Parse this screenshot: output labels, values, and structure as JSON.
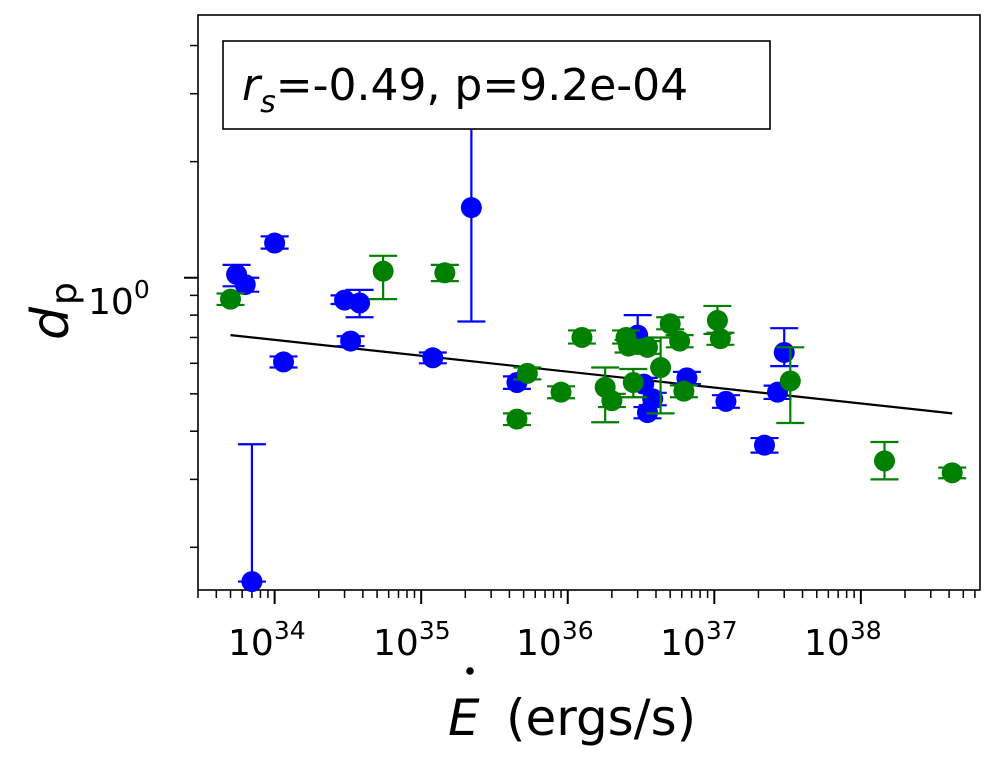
{
  "chart_data": {
    "type": "scatter",
    "title": "",
    "xlabel": "Ė (ergs/s)",
    "xlabel_symbol": "E",
    "xlabel_unit": "(ergs/s)",
    "ylabel_symbol": "d",
    "ylabel_subscript": "p",
    "xscale": "log",
    "yscale": "log",
    "xlim": [
      3e+33,
      6.5e+38
    ],
    "ylim": [
      0.155,
      4.8
    ],
    "x_ticks": [
      {
        "exp": "34",
        "value": 1e+34
      },
      {
        "exp": "35",
        "value": 1e+35
      },
      {
        "exp": "36",
        "value": 1e+36
      },
      {
        "exp": "37",
        "value": 1e+37
      },
      {
        "exp": "38",
        "value": 1e+38
      }
    ],
    "y_ticks": [
      {
        "exp": "0",
        "value": 1.0
      }
    ],
    "annotation": {
      "rs_symbol": "r",
      "rs_subscript": "s",
      "text": "=-0.49, p=9.2e-04",
      "position": "top-left"
    },
    "fit_line": {
      "x": [
        5e+33,
        4.2e+38
      ],
      "y": [
        0.71,
        0.445
      ],
      "color": "#000000"
    },
    "series": [
      {
        "name": "blue",
        "color": "#0000ff",
        "points": [
          {
            "x": 5.5e+33,
            "y": 1.02,
            "ylo": 0.95,
            "yhi": 1.08
          },
          {
            "x": 6.3e+33,
            "y": 0.96,
            "ylo": 0.92,
            "yhi": 1.0
          },
          {
            "x": 7e+33,
            "y": 0.163,
            "ylo": 0.163,
            "yhi": 0.37
          },
          {
            "x": 1e+34,
            "y": 1.23,
            "ylo": 1.19,
            "yhi": 1.28
          },
          {
            "x": 1.15e+34,
            "y": 0.605,
            "ylo": 0.585,
            "yhi": 0.625
          },
          {
            "x": 3e+34,
            "y": 0.875,
            "ylo": 0.855,
            "yhi": 0.9
          },
          {
            "x": 3.3e+34,
            "y": 0.685,
            "ylo": 0.665,
            "yhi": 0.705
          },
          {
            "x": 3.8e+34,
            "y": 0.86,
            "ylo": 0.79,
            "yhi": 0.93
          },
          {
            "x": 1.2e+35,
            "y": 0.62,
            "ylo": 0.6,
            "yhi": 0.64
          },
          {
            "x": 2.2e+35,
            "y": 1.52,
            "ylo": 0.77,
            "yhi": 2.62
          },
          {
            "x": 4.5e+35,
            "y": 0.535,
            "ylo": 0.515,
            "yhi": 0.555
          },
          {
            "x": 3e+36,
            "y": 0.71,
            "ylo": 0.66,
            "yhi": 0.8
          },
          {
            "x": 3.3e+36,
            "y": 0.53,
            "ylo": 0.51,
            "yhi": 0.55
          },
          {
            "x": 3.5e+36,
            "y": 0.447,
            "ylo": 0.432,
            "yhi": 0.462
          },
          {
            "x": 3.8e+36,
            "y": 0.485,
            "ylo": 0.467,
            "yhi": 0.503
          },
          {
            "x": 6.5e+36,
            "y": 0.55,
            "ylo": 0.53,
            "yhi": 0.57
          },
          {
            "x": 1.2e+37,
            "y": 0.478,
            "ylo": 0.46,
            "yhi": 0.496
          },
          {
            "x": 2.2e+37,
            "y": 0.368,
            "ylo": 0.352,
            "yhi": 0.384
          },
          {
            "x": 2.7e+37,
            "y": 0.505,
            "ylo": 0.485,
            "yhi": 0.525
          },
          {
            "x": 3e+37,
            "y": 0.64,
            "ylo": 0.59,
            "yhi": 0.74
          }
        ]
      },
      {
        "name": "green",
        "color": "#008000",
        "points": [
          {
            "x": 5e+33,
            "y": 0.88,
            "ylo": 0.85,
            "yhi": 0.91
          },
          {
            "x": 5.5e+34,
            "y": 1.04,
            "ylo": 0.88,
            "yhi": 1.14
          },
          {
            "x": 1.45e+35,
            "y": 1.03,
            "ylo": 0.98,
            "yhi": 1.08
          },
          {
            "x": 4.5e+35,
            "y": 0.43,
            "ylo": 0.415,
            "yhi": 0.445
          },
          {
            "x": 5.3e+35,
            "y": 0.565,
            "ylo": 0.545,
            "yhi": 0.585
          },
          {
            "x": 9e+35,
            "y": 0.505,
            "ylo": 0.487,
            "yhi": 0.523
          },
          {
            "x": 1.25e+36,
            "y": 0.7,
            "ylo": 0.675,
            "yhi": 0.73
          },
          {
            "x": 1.8e+36,
            "y": 0.52,
            "ylo": 0.422,
            "yhi": 0.585
          },
          {
            "x": 2e+36,
            "y": 0.48,
            "ylo": 0.462,
            "yhi": 0.5
          },
          {
            "x": 2.5e+36,
            "y": 0.7,
            "ylo": 0.675,
            "yhi": 0.73
          },
          {
            "x": 2.6e+36,
            "y": 0.665,
            "ylo": 0.64,
            "yhi": 0.69
          },
          {
            "x": 2.8e+36,
            "y": 0.535,
            "ylo": 0.49,
            "yhi": 0.58
          },
          {
            "x": 3.5e+36,
            "y": 0.66,
            "ylo": 0.635,
            "yhi": 0.685
          },
          {
            "x": 4.3e+36,
            "y": 0.585,
            "ylo": 0.445,
            "yhi": 0.7
          },
          {
            "x": 5e+36,
            "y": 0.76,
            "ylo": 0.735,
            "yhi": 0.79
          },
          {
            "x": 5.8e+36,
            "y": 0.685,
            "ylo": 0.66,
            "yhi": 0.71
          },
          {
            "x": 6.2e+36,
            "y": 0.508,
            "ylo": 0.49,
            "yhi": 0.526
          },
          {
            "x": 1.05e+37,
            "y": 0.775,
            "ylo": 0.715,
            "yhi": 0.845
          },
          {
            "x": 1.1e+37,
            "y": 0.695,
            "ylo": 0.67,
            "yhi": 0.72
          },
          {
            "x": 3.3e+37,
            "y": 0.54,
            "ylo": 0.42,
            "yhi": 0.66
          },
          {
            "x": 1.45e+38,
            "y": 0.335,
            "ylo": 0.3,
            "yhi": 0.375
          },
          {
            "x": 4.2e+38,
            "y": 0.312,
            "ylo": 0.302,
            "yhi": 0.322
          }
        ]
      }
    ]
  }
}
